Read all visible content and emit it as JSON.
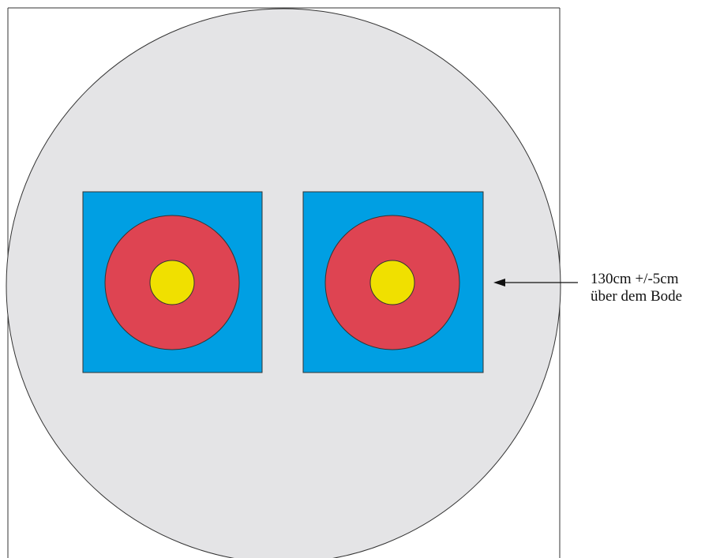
{
  "diagram": {
    "annotation": {
      "line1": "130cm +/-5cm",
      "line2": "über dem Bode"
    },
    "targets": [
      {
        "rings": [
          "blue",
          "red",
          "gold"
        ]
      },
      {
        "rings": [
          "blue",
          "red",
          "gold"
        ]
      }
    ],
    "colors": {
      "background": "#ffffff",
      "boss": "#e4e4e6",
      "frame": "#333333",
      "blue": "#009fe3",
      "red": "#de4452",
      "gold": "#f0e000",
      "arrow": "#111111"
    }
  }
}
